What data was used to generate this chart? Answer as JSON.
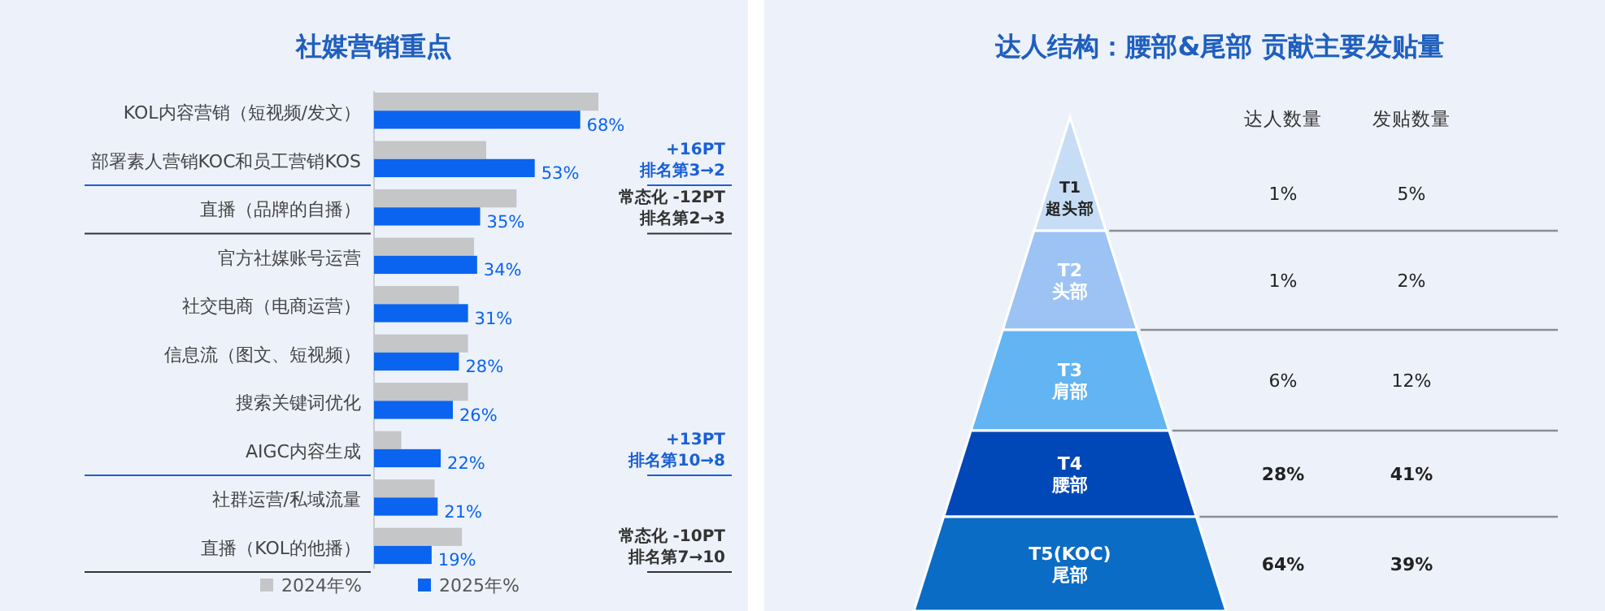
{
  "chart_data": [
    {
      "type": "bar",
      "orientation": "horizontal",
      "title": "社媒营销重点",
      "categories": [
        "KOL内容营销（短视频/发文）",
        "部署素人营销KOC和员工营销KOS",
        "直播（品牌的自播）",
        "官方社媒账号运营",
        "社交电商（电商运营）",
        "信息流（图文、短视频）",
        "搜索关键词优化",
        "AIGC内容生成",
        "社群运营/私域流量",
        "直播（KOL的他播）"
      ],
      "series": [
        {
          "name": "2024年%",
          "color": "#c4c6c8",
          "values": [
            74,
            37,
            47,
            33,
            28,
            31,
            31,
            9,
            20,
            29
          ]
        },
        {
          "name": "2025年%",
          "color": "#0a64f0",
          "values": [
            68,
            53,
            35,
            34,
            31,
            28,
            26,
            22,
            21,
            19
          ],
          "value_labels": [
            "68%",
            "53%",
            "35%",
            "34%",
            "31%",
            "28%",
            "26%",
            "22%",
            "21%",
            "19%"
          ]
        }
      ],
      "tick_labels": "y",
      "legend": "bottom",
      "annotations": [
        "+16PT\n排名第3→2",
        "常态化 -12PT\n排名第2→3",
        "+13PT\n排名第10→8",
        "常态化 -10PT\n排名第7→10"
      ]
    },
    {
      "type": "other",
      "title": "达人结构：腰部&尾部 贡献主要发贴量",
      "categories": [
        "T1\n超头部",
        "T2\n头部",
        "T3\n肩部",
        "T4\n腰部",
        "T5(KOC)\n尾部"
      ],
      "colors": [
        "#c6ddf5",
        "#9cc3f3",
        "#62b4f2",
        "#0047b8",
        "#0a6cc4"
      ],
      "series": [
        {
          "name": "达人数量",
          "values": [
            1,
            1,
            6,
            28,
            64
          ],
          "value_labels": [
            "1%",
            "1%",
            "6%",
            "28%",
            "64%"
          ]
        },
        {
          "name": "发贴数量",
          "values": [
            5,
            2,
            12,
            41,
            39
          ],
          "value_labels": [
            "5%",
            "2%",
            "12%",
            "41%",
            "39%"
          ]
        }
      ]
    }
  ]
}
